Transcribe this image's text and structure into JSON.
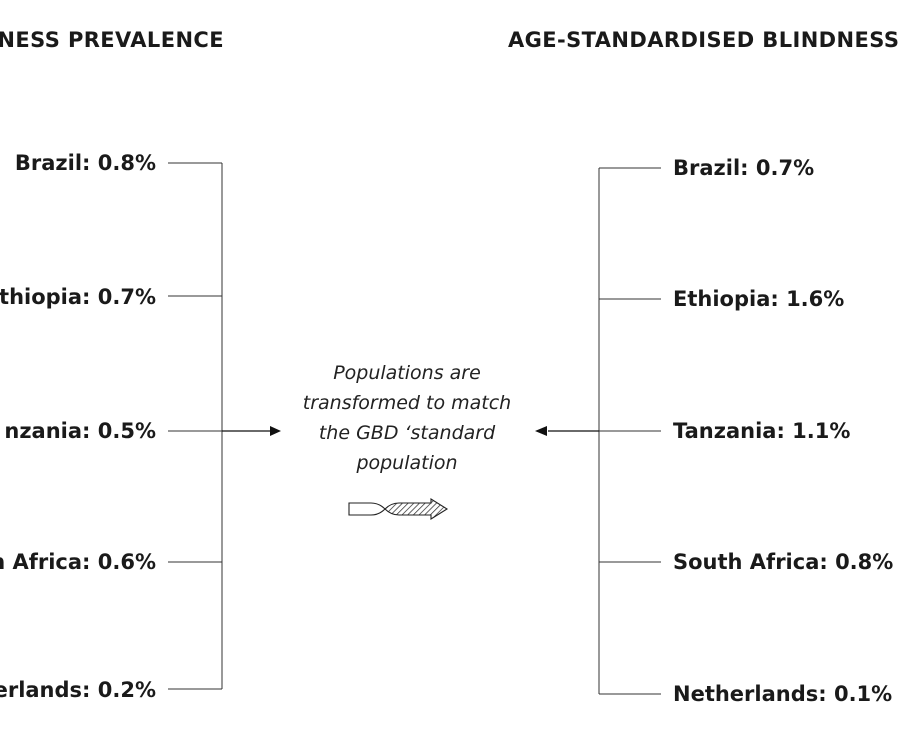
{
  "left_title": "NESS PREVALENCE",
  "right_title": "AGE-STANDARDISED BLINDNESS",
  "left_items": [
    "Brazil: 0.8%",
    "thiopia: 0.7%",
    "nzania: 0.5%",
    "n Africa: 0.6%",
    "erlands: 0.2%"
  ],
  "right_items": [
    "Brazil: 0.7%",
    "Ethiopia: 1.6%",
    "Tanzania: 1.1%",
    "South Africa: 0.8%",
    "Netherlands: 0.1%"
  ],
  "center_note": "Populations are transformed to match the GBD ‘standard population"
}
